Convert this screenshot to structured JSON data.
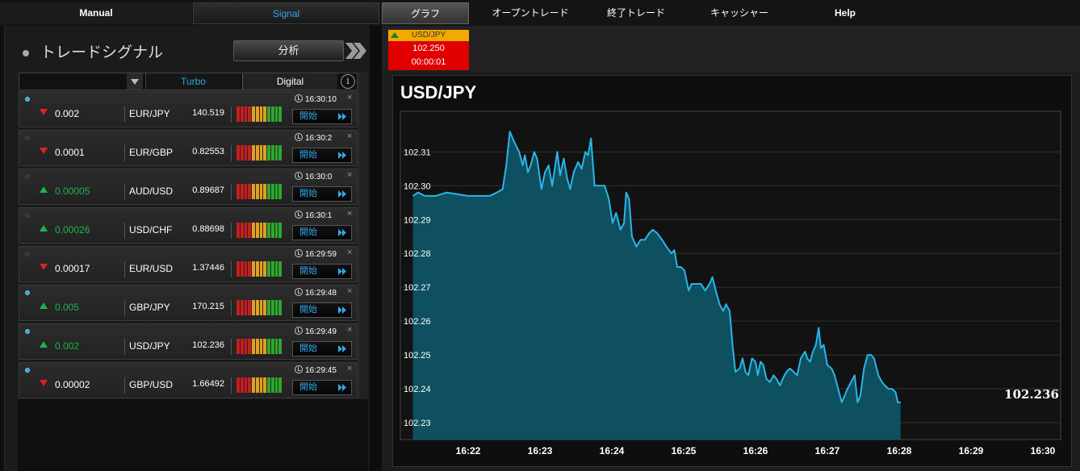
{
  "nav": {
    "manual": "Manual",
    "signal": "Signal",
    "graph": "グラフ",
    "open_trade": "オープントレード",
    "closed_trade": "終了トレード",
    "cashier": "キャッシャー",
    "help": "Help"
  },
  "signals": {
    "title": "トレードシグナル",
    "analyze_label": "分析",
    "filter": {
      "turbo": "Turbo",
      "digital": "Digital",
      "info_icon": "i"
    },
    "start_label": "開始",
    "rows": [
      {
        "active": true,
        "direction": "down",
        "delta": "0.002",
        "pair": "EUR/JPY",
        "price": "140.519",
        "time": "16:30:10"
      },
      {
        "active": false,
        "direction": "down",
        "delta": "0.0001",
        "pair": "EUR/GBP",
        "price": "0.82553",
        "time": "16:30:2"
      },
      {
        "active": false,
        "direction": "up",
        "delta": "0.00005",
        "pair": "AUD/USD",
        "price": "0.89687",
        "time": "16:30:0"
      },
      {
        "active": false,
        "direction": "up",
        "delta": "0.00026",
        "pair": "USD/CHF",
        "price": "0.88698",
        "time": "16:30:1"
      },
      {
        "active": false,
        "direction": "down",
        "delta": "0.00017",
        "pair": "EUR/USD",
        "price": "1.37446",
        "time": "16:29:59"
      },
      {
        "active": true,
        "direction": "up",
        "delta": "0.005",
        "pair": "GBP/JPY",
        "price": "170.215",
        "time": "16:29:48"
      },
      {
        "active": true,
        "direction": "up",
        "delta": "0.002",
        "pair": "USD/JPY",
        "price": "102.236",
        "time": "16:29:49"
      },
      {
        "active": true,
        "direction": "down",
        "delta": "0.00002",
        "pair": "GBP/USD",
        "price": "1.66492",
        "time": "16:29:45"
      }
    ],
    "meter_colors": [
      "#c81d1d",
      "#c81d1d",
      "#c81d1d",
      "#c81d1d",
      "#e0a020",
      "#e0a020",
      "#e0a020",
      "#e0a020",
      "#2ea82e",
      "#2ea82e",
      "#2ea82e",
      "#2ea82e"
    ]
  },
  "ticket": {
    "pair": "USD/JPY",
    "price": "102.250",
    "countdown": "00:00:01"
  },
  "chart_data": {
    "type": "area",
    "title": "USD/JPY",
    "last_value_label": "102.236",
    "ylim": [
      102.225,
      102.322
    ],
    "yticks": [
      102.23,
      102.24,
      102.25,
      102.26,
      102.27,
      102.28,
      102.29,
      102.3,
      102.31
    ],
    "xticks": [
      "16:22",
      "16:23",
      "16:24",
      "16:25",
      "16:26",
      "16:27",
      "16:28",
      "16:29",
      "16:30"
    ],
    "grid": true,
    "line_color": "#29b6e8",
    "fill_color": "#0e5a6e",
    "x_unit": "minutes after 16:22",
    "series": [
      {
        "values": [
          [
            -0.77,
            102.297
          ],
          [
            -0.7,
            102.298
          ],
          [
            -0.6,
            102.297
          ],
          [
            -0.45,
            102.297
          ],
          [
            -0.3,
            102.298
          ],
          [
            0.0,
            102.297
          ],
          [
            0.3,
            102.297
          ],
          [
            0.4,
            102.298
          ],
          [
            0.48,
            102.299
          ],
          [
            0.53,
            102.306
          ],
          [
            0.58,
            102.316
          ],
          [
            0.64,
            102.313
          ],
          [
            0.71,
            102.31
          ],
          [
            0.76,
            102.306
          ],
          [
            0.79,
            102.309
          ],
          [
            0.83,
            102.304
          ],
          [
            0.87,
            102.306
          ],
          [
            0.92,
            102.31
          ],
          [
            0.96,
            102.308
          ],
          [
            1.02,
            102.299
          ],
          [
            1.07,
            102.304
          ],
          [
            1.12,
            102.306
          ],
          [
            1.17,
            102.3
          ],
          [
            1.24,
            102.31
          ],
          [
            1.28,
            102.303
          ],
          [
            1.33,
            102.308
          ],
          [
            1.38,
            102.302
          ],
          [
            1.42,
            102.299
          ],
          [
            1.47,
            102.304
          ],
          [
            1.53,
            102.307
          ],
          [
            1.58,
            102.305
          ],
          [
            1.63,
            102.31
          ],
          [
            1.67,
            102.309
          ],
          [
            1.71,
            102.314
          ],
          [
            1.76,
            102.3
          ],
          [
            1.82,
            102.3
          ],
          [
            1.9,
            102.3
          ],
          [
            1.96,
            102.296
          ],
          [
            2.01,
            102.289
          ],
          [
            2.06,
            102.292
          ],
          [
            2.12,
            102.287
          ],
          [
            2.17,
            102.289
          ],
          [
            2.2,
            102.298
          ],
          [
            2.24,
            102.296
          ],
          [
            2.28,
            102.285
          ],
          [
            2.34,
            102.282
          ],
          [
            2.4,
            102.284
          ],
          [
            2.46,
            102.284
          ],
          [
            2.52,
            102.286
          ],
          [
            2.57,
            102.287
          ],
          [
            2.63,
            102.286
          ],
          [
            2.7,
            102.284
          ],
          [
            2.76,
            102.282
          ],
          [
            2.83,
            102.28
          ],
          [
            2.87,
            102.281
          ],
          [
            2.91,
            102.276
          ],
          [
            2.96,
            102.276
          ],
          [
            3.01,
            102.275
          ],
          [
            3.07,
            102.269
          ],
          [
            3.11,
            102.271
          ],
          [
            3.16,
            102.271
          ],
          [
            3.24,
            102.271
          ],
          [
            3.3,
            102.269
          ],
          [
            3.36,
            102.271
          ],
          [
            3.4,
            102.273
          ],
          [
            3.46,
            102.268
          ],
          [
            3.5,
            102.265
          ],
          [
            3.55,
            102.263
          ],
          [
            3.59,
            102.265
          ],
          [
            3.64,
            102.263
          ],
          [
            3.68,
            102.253
          ],
          [
            3.72,
            102.245
          ],
          [
            3.78,
            102.246
          ],
          [
            3.82,
            102.249
          ],
          [
            3.86,
            102.245
          ],
          [
            3.9,
            102.244
          ],
          [
            3.95,
            102.249
          ],
          [
            4.0,
            102.248
          ],
          [
            4.03,
            102.244
          ],
          [
            4.07,
            102.248
          ],
          [
            4.11,
            102.247
          ],
          [
            4.15,
            102.243
          ],
          [
            4.2,
            102.242
          ],
          [
            4.25,
            102.244
          ],
          [
            4.29,
            102.243
          ],
          [
            4.34,
            102.241
          ],
          [
            4.38,
            102.243
          ],
          [
            4.43,
            102.245
          ],
          [
            4.48,
            102.246
          ],
          [
            4.53,
            102.245
          ],
          [
            4.58,
            102.244
          ],
          [
            4.63,
            102.249
          ],
          [
            4.69,
            102.251
          ],
          [
            4.72,
            102.249
          ],
          [
            4.76,
            102.248
          ],
          [
            4.8,
            102.251
          ],
          [
            4.84,
            102.253
          ],
          [
            4.88,
            102.258
          ],
          [
            4.91,
            102.252
          ],
          [
            4.95,
            102.253
          ],
          [
            5.0,
            102.247
          ],
          [
            5.06,
            102.246
          ],
          [
            5.1,
            102.244
          ],
          [
            5.15,
            102.24
          ],
          [
            5.2,
            102.236
          ],
          [
            5.24,
            102.238
          ],
          [
            5.28,
            102.24
          ],
          [
            5.33,
            102.242
          ],
          [
            5.38,
            102.244
          ],
          [
            5.42,
            102.236
          ],
          [
            5.46,
            102.238
          ],
          [
            5.51,
            102.246
          ],
          [
            5.56,
            102.25
          ],
          [
            5.61,
            102.25
          ],
          [
            5.65,
            102.249
          ],
          [
            5.71,
            102.244
          ],
          [
            5.76,
            102.242
          ],
          [
            5.8,
            102.241
          ],
          [
            5.85,
            102.24
          ],
          [
            5.9,
            102.24
          ],
          [
            5.95,
            102.239
          ],
          [
            5.98,
            102.236
          ],
          [
            6.02,
            102.236
          ]
        ]
      }
    ]
  }
}
